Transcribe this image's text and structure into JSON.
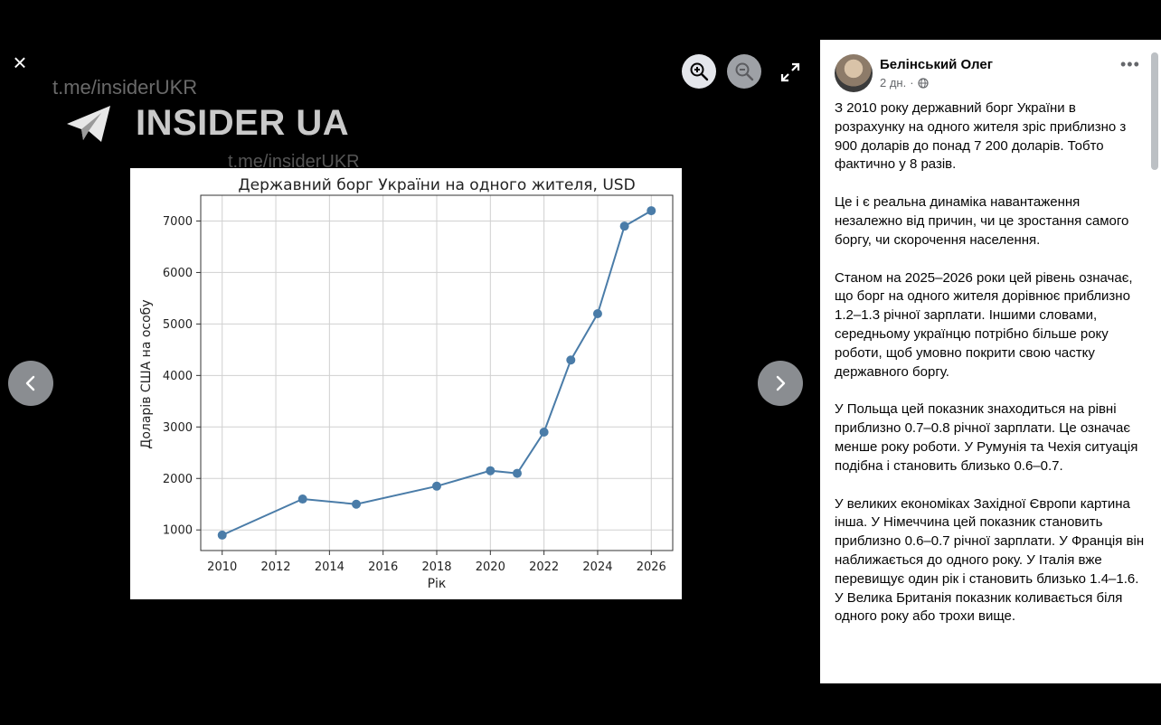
{
  "viewer": {
    "close_label": "×",
    "zoom_in_icon": "zoom-in-icon",
    "zoom_out_icon": "zoom-out-icon",
    "fullscreen_icon": "fullscreen-icon",
    "prev_icon": "chevron-left-icon",
    "next_icon": "chevron-right-icon"
  },
  "watermark": {
    "url_top": "t.me/insiderUKR",
    "logo_text": "INSIDER UA",
    "url_bottom": "t.me/insiderUKR"
  },
  "chart_data": {
    "type": "line",
    "title": "Державний борг України на одного жителя, USD",
    "xlabel": "Рік",
    "ylabel": "Доларів США на особу",
    "x": [
      2010,
      2013,
      2015,
      2018,
      2020,
      2021,
      2022,
      2023,
      2024,
      2025,
      2026
    ],
    "series": [
      {
        "values": [
          900,
          1600,
          1500,
          1850,
          2150,
          2100,
          2900,
          4300,
          5200,
          6900,
          7200
        ]
      }
    ],
    "xlim": [
      2009.2,
      2026.8
    ],
    "ylim": [
      600,
      7500
    ],
    "x_ticks": [
      "2010",
      "2012",
      "2014",
      "2016",
      "2018",
      "2020",
      "2022",
      "2024",
      "2026"
    ],
    "y_ticks": [
      "1000",
      "2000",
      "3000",
      "4000",
      "5000",
      "6000",
      "7000"
    ],
    "grid": true,
    "color": "#4a7ca8"
  },
  "post": {
    "author": "Белінський Олег",
    "time": "2 дн.",
    "separator": "·",
    "privacy_icon": "globe-icon",
    "more_label": "•••",
    "paragraphs": [
      "З 2010 року державний борг України в розрахунку на одного жителя зріс приблизно з 900 доларів до понад 7 200 доларів. Тобто фактично у 8 разів.",
      "Це і є реальна динаміка навантаження незалежно від причин, чи це зростання самого боргу, чи скорочення населення.",
      "Станом на 2025–2026 роки цей рівень означає, що борг на одного жителя дорівнює приблизно 1.2–1.3 річної зарплати. Іншими словами, середньому українцю потрібно більше року роботи, щоб умовно покрити свою частку державного боргу.",
      "У Польща цей показник знаходиться на рівні приблизно 0.7–0.8 річної зарплати. Це означає менше року роботи. У Румунія та Чехія ситуація подібна і становить близько 0.6–0.7.",
      "У великих економіках Західної Європи картина інша. У Німеччина цей показник становить приблизно 0.6–0.7 річної зарплати. У Франція він наближається до одного року. У Італія вже перевищує один рік і становить близько 1.4–1.6. У Велика Британія показник коливається біля одного року або трохи вище."
    ]
  }
}
